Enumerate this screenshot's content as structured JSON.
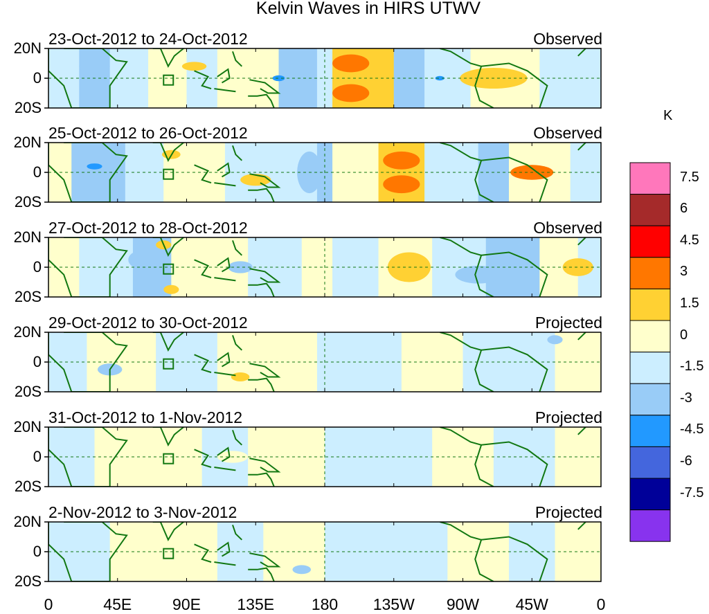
{
  "title": "Kelvin Waves in HIRS UTWV",
  "unit": "K",
  "lat_labels": [
    "20N",
    "0",
    "20S"
  ],
  "lon_labels": [
    "0",
    "45E",
    "90E",
    "135E",
    "180",
    "135W",
    "90W",
    "45W",
    "0"
  ],
  "panels": [
    {
      "dates": "23-Oct-2012 to 24-Oct-2012",
      "status": "Observed"
    },
    {
      "dates": "25-Oct-2012 to 26-Oct-2012",
      "status": "Observed"
    },
    {
      "dates": "27-Oct-2012 to 28-Oct-2012",
      "status": "Observed"
    },
    {
      "dates": "29-Oct-2012 to 30-Oct-2012",
      "status": "Projected"
    },
    {
      "dates": "31-Oct-2012 to 1-Nov-2012",
      "status": "Projected"
    },
    {
      "dates": "2-Nov-2012 to 3-Nov-2012",
      "status": "Projected"
    }
  ],
  "colorbar": {
    "colors": [
      "#ff77bb",
      "#a52a2a",
      "#ff0000",
      "#ff7700",
      "#ffd133",
      "#ffffcc",
      "#cceeff",
      "#99ccf7",
      "#2299ff",
      "#4466dd",
      "#000099",
      "#8833ee"
    ],
    "labels": [
      "7.5",
      "6",
      "4.5",
      "3",
      "1.5",
      "0",
      "-1.5",
      "-3",
      "-4.5",
      "-6",
      "-7.5"
    ]
  },
  "chart_data": {
    "type": "heatmap",
    "title": "Kelvin Waves in HIRS UTWV",
    "x_ticks": [
      "0",
      "45E",
      "90E",
      "135E",
      "180",
      "135W",
      "90W",
      "45W",
      "0"
    ],
    "y_ticks": [
      "20N",
      "0",
      "20S"
    ],
    "legend_unit": "K",
    "legend_placement": "right"
  }
}
